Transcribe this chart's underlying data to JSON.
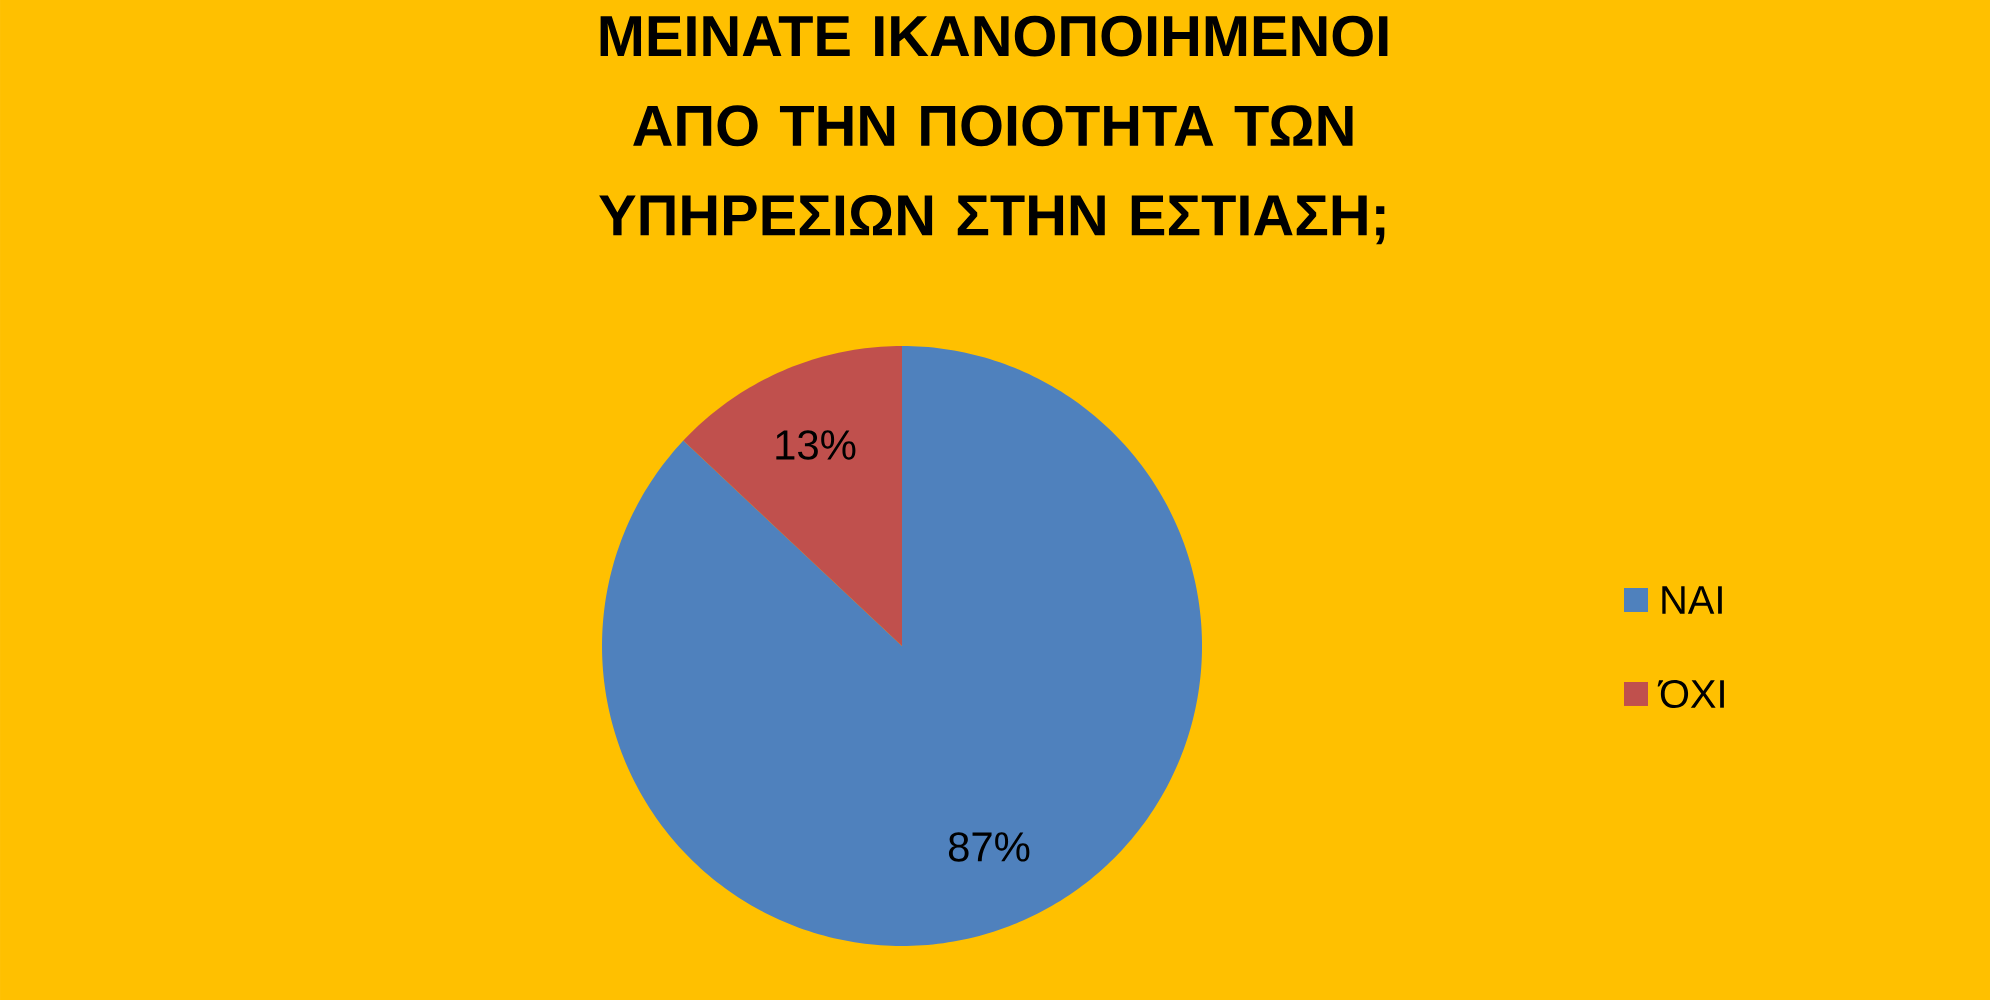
{
  "chart_data": {
    "type": "pie",
    "title": "ΜΕΙΝΑΤΕ ΙΚΑΝΟΠΟΙΗΜΕΝΟΙ ΑΠΟ ΤΗΝ ΠΟΙΟΤΗΤΑ ΤΩΝ ΥΠΗΡΕΣΙΩΝ ΣΤΗΝ ΕΣΤΙΑΣΗ;",
    "categories": [
      "ΝΑΙ",
      "ΌΧΙ"
    ],
    "values": [
      87,
      13
    ],
    "colors": [
      "#4f81bd",
      "#c0504d"
    ],
    "value_labels": [
      "87%",
      "13%"
    ],
    "legend": "right"
  }
}
